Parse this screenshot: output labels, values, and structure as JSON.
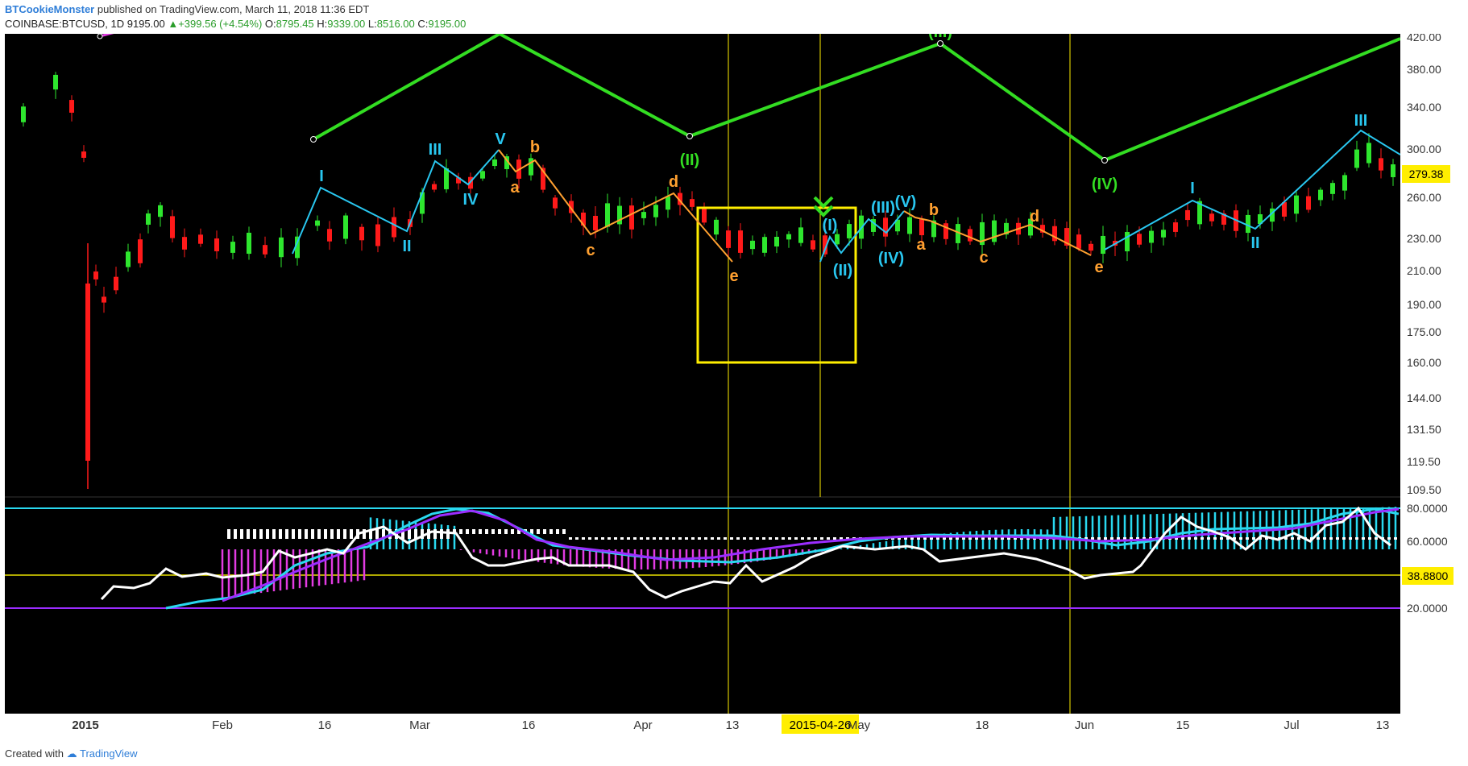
{
  "header": {
    "author": "BTCookieMonster",
    "published": "published on TradingView.com, March 11, 2018 11:36 EDT",
    "symbol": "COINBASE:BTCUSD, 1D",
    "last": "9195.00",
    "change": "▲+399.56 (+4.54%)",
    "open_label": "O:",
    "open": "8795.45",
    "high_label": "H:",
    "high": "9339.00",
    "low_label": "L:",
    "low": "8516.00",
    "close_label": "C:",
    "close": "9195.00"
  },
  "footer": {
    "created_with": "Created with",
    "brand": "TradingView"
  },
  "colors": {
    "background": "#000000",
    "up_candle": "#2ee62e",
    "down_candle": "#ff1a1a",
    "primary_wave": "#33dd22",
    "minor_wave": "#29c7f0",
    "correction_wave": "#ffa030",
    "highlight_box": "#ffee00",
    "osc_cyan": "#29d8ef",
    "osc_purple": "#9b2dff",
    "osc_white": "#ffffff",
    "osc_magenta": "#e23be2"
  },
  "chart_data": [
    {
      "type": "candlestick",
      "price_axis_ticks": [
        "420.00",
        "380.00",
        "340.00",
        "300.00",
        "260.00",
        "230.00",
        "210.00",
        "190.00",
        "175.00",
        "160.00",
        "144.00",
        "131.50",
        "119.50",
        "109.50"
      ],
      "price_axis_scale": "log",
      "current_price_label": "279.38",
      "time_axis_labels": [
        "2015",
        "Feb",
        "16",
        "Mar",
        "16",
        "Apr",
        "13",
        "2015-04-26",
        "May",
        "18",
        "Jun",
        "15",
        "Jul",
        "13"
      ],
      "wave_labels": {
        "primary": [
          "(III)",
          "(II)",
          "(IV)"
        ],
        "minor": [
          "I",
          "II",
          "III",
          "IV",
          "V",
          "(I)",
          "(II)",
          "(III)",
          "(IV)",
          "(V)",
          "I",
          "II",
          "III"
        ],
        "correction": [
          "a",
          "b",
          "c",
          "d",
          "e",
          "a",
          "b",
          "c",
          "d",
          "e"
        ]
      },
      "annotations": [
        "yellow box marking the wave (I)-(II) base",
        "green double chevron above (I)",
        "vertical marker lines"
      ]
    },
    {
      "type": "line",
      "name": "oscillator",
      "axis_ticks": [
        "80.0000",
        "60.0000",
        "20.0000"
      ],
      "level_label": "38.8800",
      "levels": [
        80,
        38.88,
        20
      ]
    }
  ]
}
